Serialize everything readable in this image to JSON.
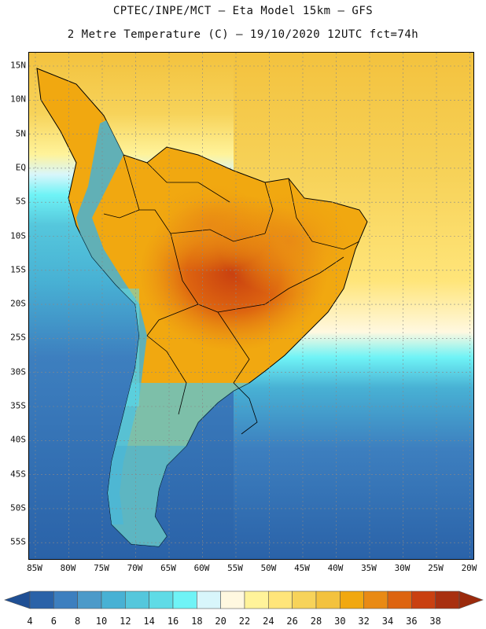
{
  "title": {
    "line1": "CPTEC/INPE/MCT –  Eta Model 15km – GFS",
    "line2": "2 Metre Temperature (C) – 19/10/2020 12UTC fct=74h"
  },
  "map": {
    "lat_labels": [
      "15N",
      "10N",
      "5N",
      "EQ",
      "5S",
      "10S",
      "15S",
      "20S",
      "25S",
      "30S",
      "35S",
      "40S",
      "45S",
      "50S",
      "55S"
    ],
    "lon_labels": [
      "85W",
      "80W",
      "75W",
      "70W",
      "65W",
      "60W",
      "55W",
      "50W",
      "45W",
      "40W",
      "35W",
      "30W",
      "25W",
      "20W"
    ]
  },
  "colorbar": {
    "labels": [
      "4",
      "6",
      "8",
      "10",
      "12",
      "14",
      "16",
      "18",
      "20",
      "22",
      "24",
      "26",
      "28",
      "30",
      "32",
      "34",
      "36",
      "38"
    ],
    "colors": [
      "#2a62a8",
      "#3d7fbf",
      "#4c9ac9",
      "#48b1d4",
      "#55c7dc",
      "#5fdbe6",
      "#6ff3f6",
      "#d8f6fb",
      "#fff8e0",
      "#fff39a",
      "#ffe57a",
      "#f7d35a",
      "#f3c23e",
      "#f1a810",
      "#e98a14",
      "#dd6410",
      "#c94010",
      "#a83010"
    ],
    "under_color": "#1f4f94",
    "over_color": "#9b2a0c"
  }
}
